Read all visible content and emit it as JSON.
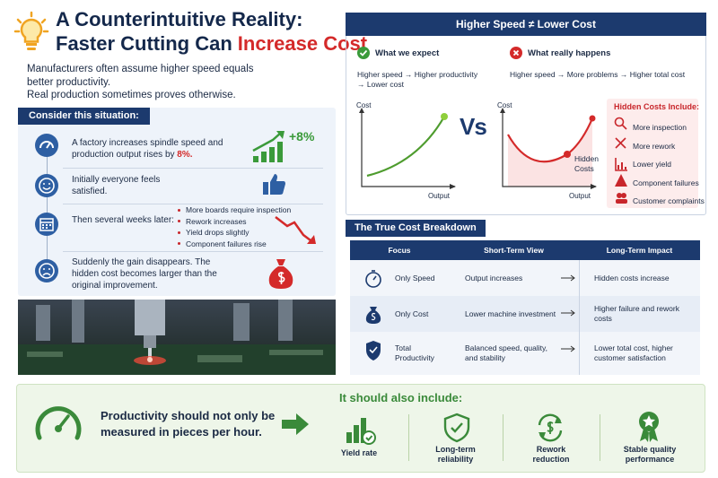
{
  "header": {
    "title_line1": "A Counterintuitive Reality:",
    "title_line2": "Faster Cutting Can",
    "title_highlight": "Increase Cost",
    "intro": [
      "Manufacturers often assume higher speed equals better productivity.",
      "Real production sometimes proves otherwise."
    ]
  },
  "situation": {
    "heading": "Consider this situation:",
    "steps": [
      {
        "text": "A factory increases spindle speed and production output rises by",
        "highlight": "8%.",
        "badge": "+8%"
      },
      {
        "text": "Initially everyone feels satisfied."
      },
      {
        "text": "Then several weeks later:",
        "bullets": [
          "More boards require inspection",
          "Rework increases",
          "Yield drops slightly",
          "Component failures rise"
        ]
      },
      {
        "text": "Suddenly the gain disappears. The hidden cost becomes larger than the original improvement."
      }
    ]
  },
  "comparison": {
    "title": "Higher Speed ≠ Lower Cost",
    "expect": {
      "label": "What we expect",
      "text": "Higher speed → Higher productivity → Lower cost",
      "y_axis": "Cost",
      "x_axis": "Output"
    },
    "vs": "Vs",
    "reality": {
      "label": "What really happens",
      "text": "Higher speed → More problems → Higher total cost",
      "y_axis": "Cost",
      "x_axis": "Output",
      "marker": "Hidden Costs"
    },
    "hidden_costs": {
      "title": "Hidden Costs Include:",
      "items": [
        "More inspection",
        "More rework",
        "Lower yield",
        "Component failures",
        "Customer complaints"
      ]
    }
  },
  "breakdown": {
    "title": "The True Cost Breakdown",
    "columns": [
      "Focus",
      "Short-Term View",
      "Long-Term Impact"
    ],
    "rows": [
      [
        "Only Speed",
        "Output increases",
        "Hidden costs increase"
      ],
      [
        "Only Cost",
        "Lower machine investment",
        "Higher failure and rework costs"
      ],
      [
        "Total Productivity",
        "Balanced speed, quality, and stability",
        "Lower total cost, higher customer satisfaction"
      ]
    ]
  },
  "footer": {
    "statement": "Productivity should not only be measured in pieces per hour.",
    "include_title": "It should also include:",
    "items": [
      "Yield rate",
      "Long-term reliability",
      "Rework reduction",
      "Stable quality performance"
    ]
  }
}
